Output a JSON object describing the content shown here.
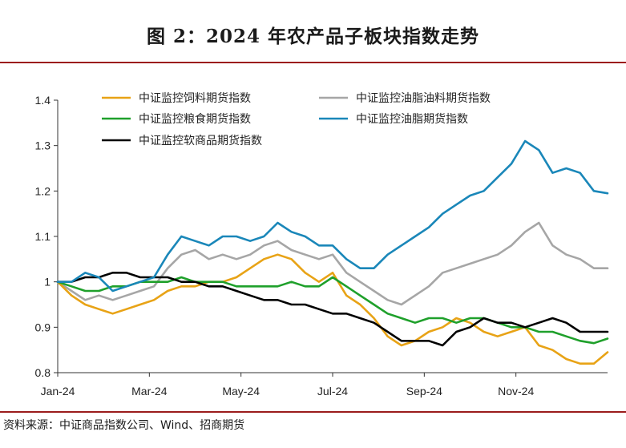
{
  "title": "图 2：2024 年农产品子板块指数走势",
  "source": "资料来源：中证商品指数公司、Wind、招商期货",
  "chart_data": {
    "type": "line",
    "x_tick_labels": [
      "Jan-24",
      "Mar-24",
      "May-24",
      "Jul-24",
      "Sep-24",
      "Nov-24"
    ],
    "x_tick_months": [
      0,
      2,
      4,
      6,
      8,
      10
    ],
    "x_range_months": [
      0,
      12
    ],
    "ylim": [
      0.8,
      1.4
    ],
    "y_ticks": [
      0.8,
      0.9,
      1,
      1.1,
      1.2,
      1.3,
      1.4
    ],
    "y_tick_labels": [
      "0.8",
      "0.9",
      "1",
      "1.1",
      "1.2",
      "1.3",
      "1.4"
    ],
    "legend_placement": "top",
    "series": [
      {
        "name": "中证监控饲料期货指数",
        "color": "#e8a316",
        "x_months": [
          0,
          0.3,
          0.6,
          0.9,
          1.2,
          1.5,
          1.8,
          2.1,
          2.4,
          2.7,
          3.0,
          3.3,
          3.6,
          3.9,
          4.2,
          4.5,
          4.8,
          5.1,
          5.4,
          5.7,
          6.0,
          6.3,
          6.6,
          6.9,
          7.2,
          7.5,
          7.8,
          8.1,
          8.4,
          8.7,
          9.0,
          9.3,
          9.6,
          9.9,
          10.2,
          10.5,
          10.8,
          11.1,
          11.4,
          11.7,
          12.0
        ],
        "values": [
          1.0,
          0.97,
          0.95,
          0.94,
          0.93,
          0.94,
          0.95,
          0.96,
          0.98,
          0.99,
          0.99,
          1.0,
          1.0,
          1.01,
          1.03,
          1.05,
          1.06,
          1.05,
          1.02,
          1.0,
          1.02,
          0.97,
          0.95,
          0.92,
          0.88,
          0.86,
          0.87,
          0.89,
          0.9,
          0.92,
          0.91,
          0.89,
          0.88,
          0.89,
          0.9,
          0.86,
          0.85,
          0.83,
          0.82,
          0.82,
          0.845
        ]
      },
      {
        "name": "中证监控油脂油料期货指数",
        "color": "#a6a6a6",
        "x_months": [
          0,
          0.3,
          0.6,
          0.9,
          1.2,
          1.5,
          1.8,
          2.1,
          2.4,
          2.7,
          3.0,
          3.3,
          3.6,
          3.9,
          4.2,
          4.5,
          4.8,
          5.1,
          5.4,
          5.7,
          6.0,
          6.3,
          6.6,
          6.9,
          7.2,
          7.5,
          7.8,
          8.1,
          8.4,
          8.7,
          9.0,
          9.3,
          9.6,
          9.9,
          10.2,
          10.5,
          10.8,
          11.1,
          11.4,
          11.7,
          12.0
        ],
        "values": [
          1.0,
          0.98,
          0.96,
          0.97,
          0.96,
          0.97,
          0.98,
          0.99,
          1.03,
          1.06,
          1.07,
          1.05,
          1.06,
          1.05,
          1.06,
          1.08,
          1.09,
          1.07,
          1.06,
          1.05,
          1.06,
          1.02,
          1.0,
          0.98,
          0.96,
          0.95,
          0.97,
          0.99,
          1.02,
          1.03,
          1.04,
          1.05,
          1.06,
          1.08,
          1.11,
          1.13,
          1.08,
          1.06,
          1.05,
          1.03,
          1.03
        ]
      },
      {
        "name": "中证监控粮食期货指数",
        "color": "#1fa02b",
        "x_months": [
          0,
          0.3,
          0.6,
          0.9,
          1.2,
          1.5,
          1.8,
          2.1,
          2.4,
          2.7,
          3.0,
          3.3,
          3.6,
          3.9,
          4.2,
          4.5,
          4.8,
          5.1,
          5.4,
          5.7,
          6.0,
          6.3,
          6.6,
          6.9,
          7.2,
          7.5,
          7.8,
          8.1,
          8.4,
          8.7,
          9.0,
          9.3,
          9.6,
          9.9,
          10.2,
          10.5,
          10.8,
          11.1,
          11.4,
          11.7,
          12.0
        ],
        "values": [
          1.0,
          0.99,
          0.98,
          0.98,
          0.99,
          0.99,
          1.0,
          1.0,
          1.0,
          1.01,
          1.0,
          1.0,
          1.0,
          0.99,
          0.99,
          0.99,
          0.99,
          1.0,
          0.99,
          0.99,
          1.01,
          0.99,
          0.97,
          0.95,
          0.93,
          0.92,
          0.91,
          0.92,
          0.92,
          0.91,
          0.92,
          0.92,
          0.91,
          0.9,
          0.9,
          0.89,
          0.89,
          0.88,
          0.87,
          0.865,
          0.875
        ]
      },
      {
        "name": "中证监控油脂期货指数",
        "color": "#1a87b9",
        "x_months": [
          0,
          0.3,
          0.6,
          0.9,
          1.2,
          1.5,
          1.8,
          2.1,
          2.4,
          2.7,
          3.0,
          3.3,
          3.6,
          3.9,
          4.2,
          4.5,
          4.8,
          5.1,
          5.4,
          5.7,
          6.0,
          6.3,
          6.6,
          6.9,
          7.2,
          7.5,
          7.8,
          8.1,
          8.4,
          8.7,
          9.0,
          9.3,
          9.6,
          9.9,
          10.2,
          10.5,
          10.8,
          11.1,
          11.4,
          11.7,
          12.0
        ],
        "values": [
          1.0,
          1.0,
          1.02,
          1.01,
          0.98,
          0.99,
          1.0,
          1.01,
          1.06,
          1.1,
          1.09,
          1.08,
          1.1,
          1.1,
          1.09,
          1.1,
          1.13,
          1.11,
          1.1,
          1.08,
          1.08,
          1.05,
          1.03,
          1.03,
          1.06,
          1.08,
          1.1,
          1.12,
          1.15,
          1.17,
          1.19,
          1.2,
          1.23,
          1.26,
          1.31,
          1.29,
          1.24,
          1.25,
          1.24,
          1.2,
          1.195
        ]
      },
      {
        "name": "中证监控软商品期货指数",
        "color": "#000000",
        "x_months": [
          0,
          0.3,
          0.6,
          0.9,
          1.2,
          1.5,
          1.8,
          2.1,
          2.4,
          2.7,
          3.0,
          3.3,
          3.6,
          3.9,
          4.2,
          4.5,
          4.8,
          5.1,
          5.4,
          5.7,
          6.0,
          6.3,
          6.6,
          6.9,
          7.2,
          7.5,
          7.8,
          8.1,
          8.4,
          8.7,
          9.0,
          9.3,
          9.6,
          9.9,
          10.2,
          10.5,
          10.8,
          11.1,
          11.4,
          11.7,
          12.0
        ],
        "values": [
          1.0,
          1.0,
          1.01,
          1.01,
          1.02,
          1.02,
          1.01,
          1.01,
          1.01,
          1.0,
          1.0,
          0.99,
          0.99,
          0.98,
          0.97,
          0.96,
          0.96,
          0.95,
          0.95,
          0.94,
          0.93,
          0.93,
          0.92,
          0.91,
          0.89,
          0.87,
          0.87,
          0.87,
          0.86,
          0.89,
          0.9,
          0.92,
          0.91,
          0.91,
          0.9,
          0.91,
          0.92,
          0.91,
          0.89,
          0.89,
          0.89
        ]
      }
    ]
  }
}
